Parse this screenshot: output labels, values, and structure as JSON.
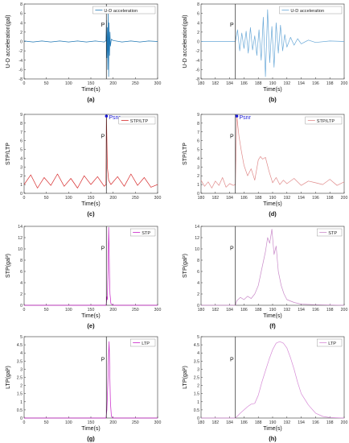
{
  "chart_data": [
    {
      "panel": "(a)",
      "type": "line",
      "title": "",
      "xlabel": "Time(s)",
      "ylabel": "U-D acceleration(gal)",
      "xlim": [
        0,
        300
      ],
      "ylim": [
        -8,
        8
      ],
      "xticks": [
        0,
        50,
        100,
        150,
        200,
        250,
        300
      ],
      "yticks": [
        -8,
        -6,
        -4,
        -2,
        0,
        2,
        4,
        6,
        8
      ],
      "ytick_labels": [
        "-8",
        "-6",
        "-4",
        "-2",
        "0",
        "2",
        "4",
        "6",
        "8"
      ],
      "legend": [
        "U-D acceleration"
      ],
      "legend_position": "top-right",
      "marker_label": "P",
      "marker_x": 184.8,
      "series": [
        {
          "name": "U-D acceleration",
          "color": "#1f77b4",
          "x": [
            0,
            20,
            40,
            60,
            80,
            100,
            120,
            140,
            160,
            180,
            184,
            185,
            186,
            187,
            188,
            189,
            190,
            191,
            192,
            193,
            194,
            196,
            200,
            220,
            240,
            260,
            280,
            300
          ],
          "y": [
            0.1,
            -0.1,
            0.1,
            -0.1,
            0.1,
            -0.1,
            0.1,
            -0.1,
            0.1,
            -0.1,
            0.2,
            4.5,
            -3.5,
            3.0,
            -6.0,
            7.0,
            -7.5,
            4.0,
            -3.0,
            2.0,
            -1.0,
            0.5,
            0.2,
            -0.1,
            0.1,
            -0.1,
            0.1,
            0
          ]
        }
      ]
    },
    {
      "panel": "(b)",
      "type": "line",
      "title": "",
      "xlabel": "Time(s)",
      "ylabel": "U-D acceleration(gal)",
      "xlim": [
        180,
        200
      ],
      "ylim": [
        -8,
        8
      ],
      "xticks": [
        180,
        182,
        184,
        186,
        188,
        190,
        192,
        194,
        196,
        198,
        200
      ],
      "yticks": [
        -8,
        -6,
        -4,
        -2,
        0,
        2,
        4,
        6,
        8
      ],
      "ytick_labels": [
        "-8",
        "-6",
        "-4",
        "-2",
        "0",
        "2",
        "4",
        "6",
        "8"
      ],
      "legend": [
        "U-D acceleration"
      ],
      "legend_position": "top-right",
      "marker_label": "P",
      "marker_x": 184.8,
      "series": [
        {
          "name": "U-D acceleration",
          "color": "#6aa9d8",
          "x": [
            180,
            182,
            184,
            184.8,
            185.1,
            185.4,
            185.7,
            186.0,
            186.3,
            186.6,
            186.9,
            187.2,
            187.5,
            187.8,
            188.1,
            188.4,
            188.7,
            189.0,
            189.3,
            189.6,
            189.9,
            190.2,
            190.5,
            190.8,
            191.1,
            191.4,
            191.7,
            192.0,
            192.5,
            193.0,
            193.5,
            194.0,
            195.0,
            196.0,
            198.0,
            200.0
          ],
          "y": [
            0,
            0,
            0,
            0,
            2.5,
            -2.0,
            1.8,
            -1.5,
            2.2,
            -2.5,
            3.0,
            -1.8,
            1.2,
            -3.0,
            2.5,
            -4.0,
            5.2,
            -7.5,
            6.8,
            -4.5,
            3.2,
            -5.5,
            4.0,
            -2.5,
            3.5,
            -2.0,
            1.5,
            -1.2,
            0.9,
            -0.8,
            0.6,
            -0.5,
            0.3,
            -0.2,
            0.1,
            0
          ]
        }
      ]
    },
    {
      "panel": "(c)",
      "type": "line",
      "title": "",
      "xlabel": "Time(s)",
      "ylabel": "STP/LTP",
      "xlim": [
        0,
        300
      ],
      "ylim": [
        0,
        9
      ],
      "xticks": [
        0,
        50,
        100,
        150,
        200,
        250,
        300
      ],
      "yticks": [
        0,
        1,
        2,
        3,
        4,
        5,
        6,
        7,
        8,
        9
      ],
      "legend": [
        "STP/LTP"
      ],
      "legend_position": "top-right",
      "marker_label": "P",
      "marker_x": 184.8,
      "peak_label": "Psnr",
      "peak": {
        "x": 185,
        "y": 8.8
      },
      "series": [
        {
          "name": "STP/LTP",
          "color": "#d62728",
          "x": [
            0,
            15,
            30,
            45,
            60,
            75,
            90,
            105,
            120,
            135,
            150,
            165,
            180,
            184,
            185,
            187,
            190,
            195,
            210,
            225,
            240,
            255,
            270,
            285,
            300
          ],
          "y": [
            1.0,
            2.1,
            0.6,
            1.8,
            0.9,
            2.2,
            0.8,
            1.7,
            0.6,
            2.0,
            1.0,
            1.9,
            0.8,
            1.0,
            8.8,
            3.0,
            1.5,
            1.0,
            1.9,
            0.8,
            2.2,
            0.9,
            1.8,
            0.7,
            1.0
          ]
        }
      ]
    },
    {
      "panel": "(d)",
      "type": "line",
      "title": "",
      "xlabel": "Time(s)",
      "ylabel": "STP/LTP",
      "xlim": [
        180,
        200
      ],
      "ylim": [
        0,
        9
      ],
      "xticks": [
        180,
        182,
        184,
        186,
        188,
        190,
        192,
        194,
        196,
        198,
        200
      ],
      "yticks": [
        0,
        1,
        2,
        3,
        4,
        5,
        6,
        7,
        8,
        9
      ],
      "legend": [
        "STP/LTP"
      ],
      "legend_position": "top-right",
      "marker_label": "P",
      "marker_x": 184.8,
      "peak_label": "Psnr",
      "peak": {
        "x": 185,
        "y": 8.8
      },
      "series": [
        {
          "name": "STP/LTP",
          "color": "#e08a8a",
          "x": [
            180,
            180.5,
            181,
            181.5,
            182,
            182.5,
            183,
            183.5,
            184,
            184.5,
            184.8,
            185.0,
            185.3,
            185.6,
            186.0,
            186.5,
            187.0,
            187.5,
            188.0,
            188.3,
            188.6,
            189.0,
            189.5,
            190.0,
            190.5,
            191.0,
            191.5,
            192.0,
            193.0,
            194.0,
            195.0,
            196.0,
            197.0,
            198.0,
            199.0,
            200.0
          ],
          "y": [
            1.5,
            0.8,
            1.3,
            0.6,
            1.4,
            0.9,
            1.8,
            0.7,
            1.1,
            0.9,
            1.0,
            8.8,
            6.5,
            5.0,
            3.2,
            2.0,
            2.8,
            1.5,
            3.8,
            4.2,
            3.9,
            4.1,
            2.5,
            1.2,
            1.8,
            1.0,
            1.5,
            1.1,
            1.7,
            0.9,
            1.4,
            1.2,
            1.0,
            1.6,
            0.9,
            1.3
          ]
        }
      ]
    },
    {
      "panel": "(e)",
      "type": "line",
      "title": "",
      "xlabel": "Time(s)",
      "ylabel": "STP(gal²)",
      "xlim": [
        0,
        300
      ],
      "ylim": [
        0,
        14
      ],
      "xticks": [
        0,
        50,
        100,
        150,
        200,
        250,
        300
      ],
      "yticks": [
        0,
        2,
        4,
        6,
        8,
        10,
        12,
        14
      ],
      "legend": [
        "STP"
      ],
      "legend_position": "top-right",
      "marker_label": "P",
      "marker_x": 184.8,
      "series": [
        {
          "name": "STP",
          "color": "#c71ec7",
          "x": [
            0,
            100,
            184,
            185,
            186,
            187,
            188,
            189,
            190,
            191,
            192,
            193,
            195,
            200,
            300
          ],
          "y": [
            0,
            0,
            0,
            0.5,
            1.5,
            1.0,
            4.0,
            8.0,
            13.8,
            10.0,
            5.0,
            2.0,
            0.3,
            0,
            0
          ]
        }
      ]
    },
    {
      "panel": "(f)",
      "type": "line",
      "title": "",
      "xlabel": "Time(s)",
      "ylabel": "STP(gal²)",
      "xlim": [
        180,
        200
      ],
      "ylim": [
        0,
        14
      ],
      "xticks": [
        180,
        182,
        184,
        186,
        188,
        190,
        192,
        194,
        196,
        198,
        200
      ],
      "yticks": [
        0,
        2,
        4,
        6,
        8,
        10,
        12,
        14
      ],
      "legend": [
        "STP"
      ],
      "legend_position": "top-right",
      "marker_label": "P",
      "marker_x": 184.8,
      "series": [
        {
          "name": "STP",
          "color": "#c98ac9",
          "x": [
            180,
            184.8,
            185.0,
            185.5,
            186.0,
            186.5,
            187.0,
            187.5,
            188.0,
            188.5,
            189.0,
            189.3,
            189.6,
            189.9,
            190.2,
            190.5,
            190.8,
            191.2,
            191.6,
            192.0,
            193.0,
            194.0,
            196.0,
            200.0
          ],
          "y": [
            0,
            0,
            0.8,
            1.4,
            1.0,
            1.6,
            1.2,
            2.0,
            3.5,
            6.5,
            9.5,
            12.0,
            11.0,
            13.5,
            9.0,
            10.5,
            6.0,
            3.5,
            2.0,
            1.0,
            0.5,
            0.2,
            0.1,
            0
          ]
        }
      ]
    },
    {
      "panel": "(g)",
      "type": "line",
      "title": "",
      "xlabel": "Time(s)",
      "ylabel": "LTP(gal²)",
      "xlim": [
        0,
        300
      ],
      "ylim": [
        0,
        5
      ],
      "xticks": [
        0,
        50,
        100,
        150,
        200,
        250,
        300
      ],
      "yticks": [
        0,
        0.5,
        1,
        1.5,
        2,
        2.5,
        3,
        3.5,
        4,
        4.5,
        5
      ],
      "ytick_labels": [
        "0",
        "0.5",
        "1",
        "1.5",
        "2",
        "2.5",
        "3",
        "3.5",
        "4",
        "4.5",
        "5"
      ],
      "legend": [
        "LTP"
      ],
      "legend_position": "top-right",
      "marker_label": "P",
      "marker_x": 184.8,
      "series": [
        {
          "name": "LTP",
          "color": "#c71ec7",
          "x": [
            0,
            184,
            186,
            188,
            190,
            191,
            192,
            194,
            196,
            200,
            300
          ],
          "y": [
            0,
            0,
            0.5,
            2.0,
            4.0,
            4.7,
            3.5,
            1.0,
            0.1,
            0,
            0
          ]
        }
      ]
    },
    {
      "panel": "(h)",
      "type": "line",
      "title": "",
      "xlabel": "Time(s)",
      "ylabel": "LTP(gal²)",
      "xlim": [
        180,
        200
      ],
      "ylim": [
        0,
        5
      ],
      "xticks": [
        180,
        182,
        184,
        186,
        188,
        190,
        192,
        194,
        196,
        198,
        200
      ],
      "yticks": [
        0,
        0.5,
        1,
        1.5,
        2,
        2.5,
        3,
        3.5,
        4,
        4.5,
        5
      ],
      "ytick_labels": [
        "0",
        "0.5",
        "1",
        "1.5",
        "2",
        "2.5",
        "3",
        "3.5",
        "4",
        "4.5",
        "5"
      ],
      "legend": [
        "LTP"
      ],
      "legend_position": "top-right",
      "marker_label": "P",
      "marker_x": 184.8,
      "series": [
        {
          "name": "LTP",
          "color": "#d68ad6",
          "x": [
            180,
            184.8,
            185.5,
            186.0,
            186.5,
            187.0,
            187.5,
            188.0,
            188.5,
            189.0,
            189.5,
            190.0,
            190.5,
            191.0,
            191.5,
            192.0,
            192.5,
            193.0,
            193.5,
            194.0,
            195.0,
            196.0,
            197.0,
            198.0,
            200.0
          ],
          "y": [
            0,
            0,
            0.3,
            0.5,
            0.7,
            0.85,
            0.9,
            1.4,
            2.2,
            2.9,
            3.6,
            4.2,
            4.6,
            4.7,
            4.6,
            4.3,
            3.7,
            3.0,
            2.2,
            1.5,
            0.8,
            0.3,
            0.1,
            0.03,
            0
          ]
        }
      ]
    }
  ]
}
